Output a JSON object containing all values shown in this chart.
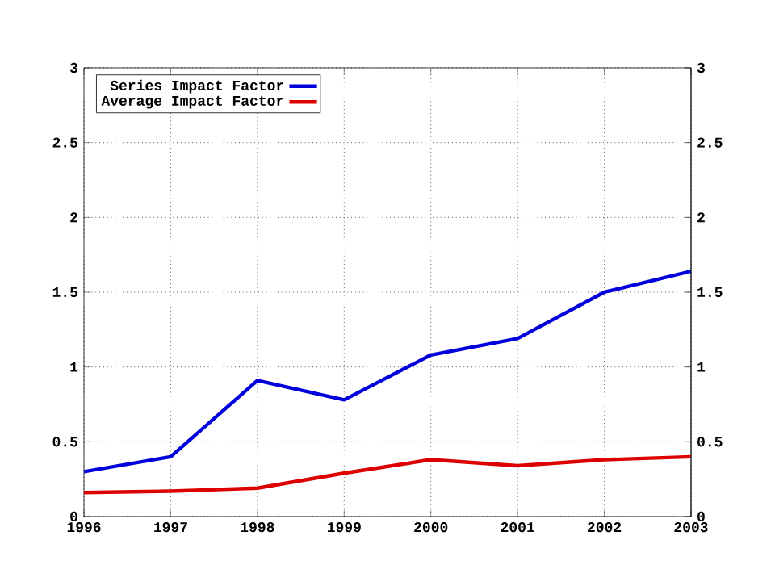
{
  "chart_data": {
    "type": "line",
    "categories": [
      "1996",
      "1997",
      "1998",
      "1999",
      "2000",
      "2001",
      "2002",
      "2003"
    ],
    "series": [
      {
        "name": "Series Impact Factor",
        "color": "#0000dd",
        "values": [
          0.3,
          0.4,
          0.91,
          0.78,
          1.08,
          1.19,
          1.5,
          1.64
        ]
      },
      {
        "name": "Average Impact Factor",
        "color": "#dd0000",
        "values": [
          0.16,
          0.17,
          0.19,
          0.29,
          0.38,
          0.34,
          0.38,
          0.4
        ]
      }
    ],
    "ylim": [
      0,
      3
    ],
    "yticks": [
      0,
      0.5,
      1,
      1.5,
      2,
      2.5,
      3
    ],
    "y2lim": [
      0,
      3
    ],
    "y2ticks": [
      0,
      0.5,
      1,
      1.5,
      2,
      2.5,
      3
    ],
    "grid": true,
    "legend": "top left",
    "line_style": "solid",
    "marker": "none"
  }
}
